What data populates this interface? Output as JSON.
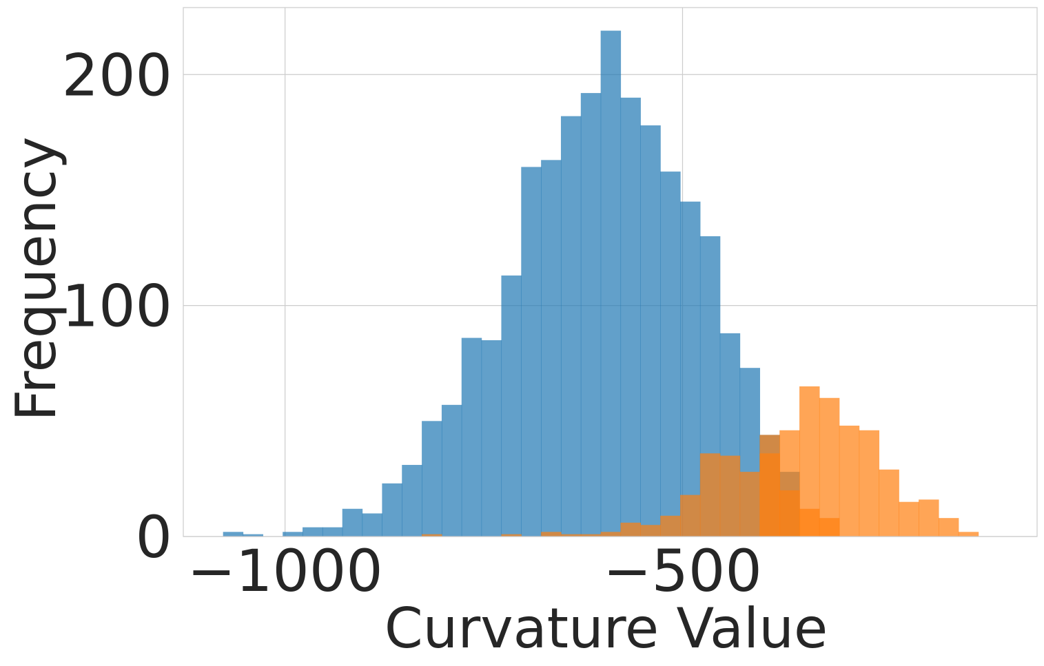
{
  "chart_data": {
    "type": "histogram",
    "xlabel": "Curvature Value",
    "ylabel": "Frequency",
    "xlim": [
      -1128,
      -54
    ],
    "ylim": [
      0,
      229
    ],
    "xticks": [
      -1000,
      -500
    ],
    "xtick_labels": [
      "−1000",
      "−500"
    ],
    "yticks": [
      0,
      100,
      200
    ],
    "ytick_labels": [
      "0",
      "100",
      "200"
    ],
    "grid": true,
    "legend": "none",
    "series": [
      {
        "color": "#1f77b4",
        "alpha": 0.7,
        "bin_width": 25,
        "bin_start": -1078,
        "counts": [
          2,
          1,
          0,
          2,
          4,
          4,
          12,
          10,
          23,
          31,
          50,
          57,
          86,
          85,
          113,
          160,
          163,
          182,
          192,
          219,
          190,
          178,
          158,
          145,
          130,
          88,
          73,
          44,
          28
        ]
      },
      {
        "color": "#ff7f0e",
        "alpha": 0.7,
        "bin_width": 25,
        "bin_start": -828,
        "counts": [
          1,
          0,
          0,
          0,
          1,
          0,
          2,
          1,
          1,
          2,
          6,
          5,
          9,
          18,
          36,
          35,
          28,
          36,
          20,
          12,
          8,
          0,
          0,
          0,
          0,
          0,
          0,
          0,
          0
        ]
      },
      {
        "color": "#ff7f0e",
        "alpha": 0.7,
        "bin_width": 25,
        "bin_start": -403,
        "counts": [
          44,
          46,
          65,
          60,
          48,
          46,
          29,
          15,
          16,
          8,
          2
        ]
      }
    ]
  }
}
